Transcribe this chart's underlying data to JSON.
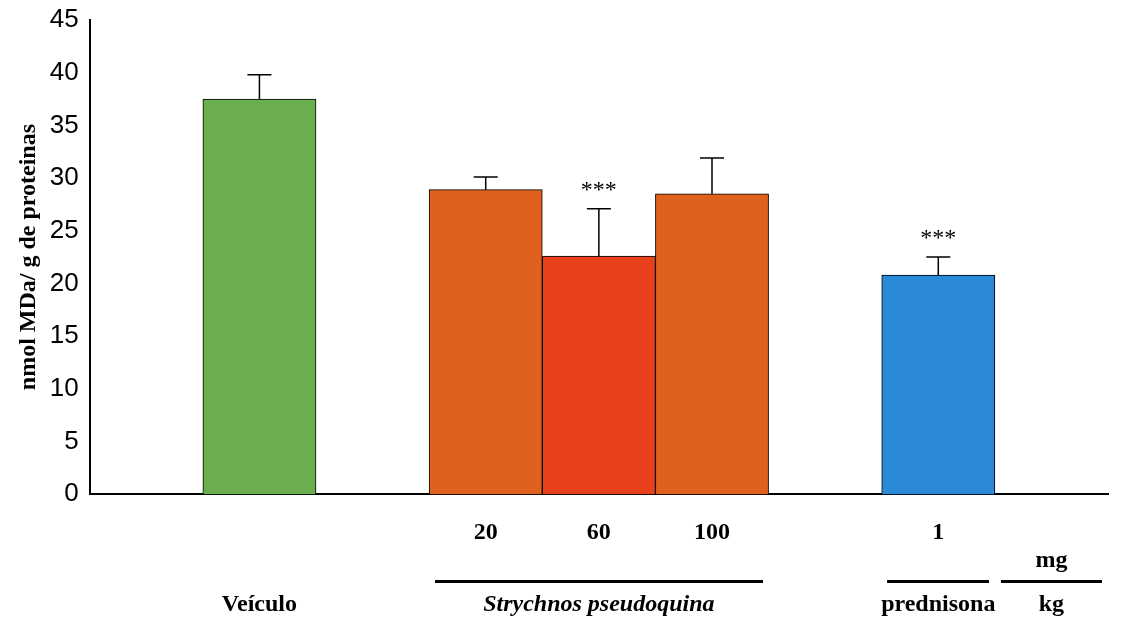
{
  "chart_data": {
    "type": "bar",
    "ylabel": "nmol MDa/ g de proteinas",
    "categories": [
      null,
      null,
      null,
      "20",
      "60",
      "100",
      null,
      "1",
      null
    ],
    "values": [
      null,
      37.5,
      null,
      28.9,
      22.6,
      28.5,
      null,
      20.8,
      null
    ],
    "colors": [
      "#000000",
      "#6aae4e",
      "#000000",
      "#e0601e",
      "#e8401a",
      "#e0601e",
      "#000000",
      "#2a8ad8",
      "#000000"
    ],
    "errors": [
      null,
      [
        37.5,
        39.8
      ],
      null,
      [
        28.9,
        30.1
      ],
      [
        22.6,
        27.1
      ],
      [
        28.5,
        31.9
      ],
      null,
      [
        20.8,
        22.5
      ],
      null
    ],
    "ylim": [
      0,
      45
    ],
    "yticks": [
      0,
      5,
      10,
      15,
      20,
      25,
      30,
      35,
      40,
      45
    ],
    "grid": false,
    "annotations": [
      {
        "text": "***",
        "x": "60",
        "y": 27.1
      },
      {
        "text": "***",
        "x": "1",
        "y": 22.5
      },
      "Veículo",
      "Strychnos pseudoquina",
      "prednisona",
      "mg",
      "kg"
    ]
  }
}
